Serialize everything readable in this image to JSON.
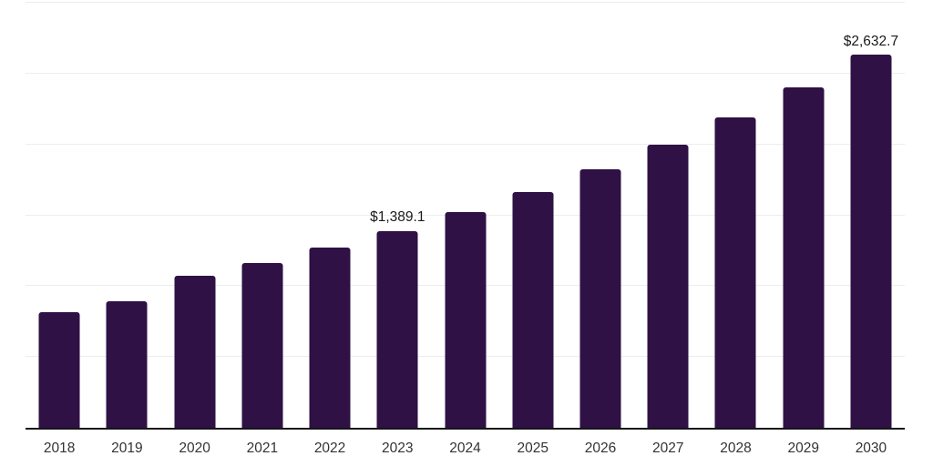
{
  "chart_data": {
    "type": "bar",
    "title": "",
    "xlabel": "",
    "ylabel": "",
    "categories": [
      "2018",
      "2019",
      "2020",
      "2021",
      "2022",
      "2023",
      "2024",
      "2025",
      "2026",
      "2027",
      "2028",
      "2029",
      "2030"
    ],
    "values": [
      818,
      890,
      1071,
      1166,
      1272,
      1389.1,
      1522,
      1667,
      1827,
      2001,
      2193,
      2402,
      2632.7
    ],
    "data_labels": [
      "",
      "",
      "",
      "",
      "",
      "$1,389.1",
      "",
      "",
      "",
      "",
      "",
      "",
      "$2,632.7"
    ],
    "ylim": [
      0,
      3000
    ],
    "gridline_values": [
      500,
      1000,
      1500,
      2000,
      2500,
      3000
    ],
    "grid": "horizontal",
    "legend": "none",
    "colors": {
      "bar": "#2F1145",
      "gridline": "#ededed",
      "axis_line": "#151515",
      "tick_label": "#333333",
      "data_label": "#1a1a1a",
      "background": "#ffffff"
    }
  }
}
